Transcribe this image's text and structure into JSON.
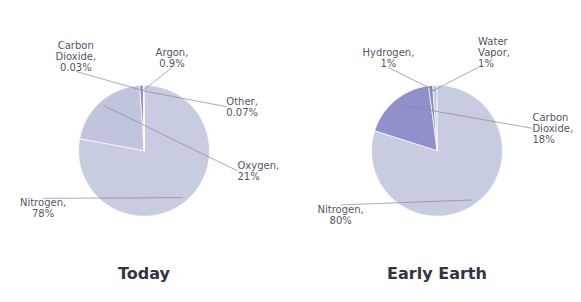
{
  "chart_data": [
    {
      "type": "pie",
      "title": "Today",
      "categories": [
        "Nitrogen,",
        "Oxygen,",
        "Argon,",
        "Other,",
        "Carbon\nDioxide,"
      ],
      "values": [
        78,
        21,
        0.9,
        0.07,
        0.03
      ],
      "value_labels": [
        "78%",
        "21%",
        "0.9%",
        "0.07%",
        "0.03%"
      ],
      "data_labels": true,
      "colors": [
        "#c8cce0",
        "#c0c4dc",
        "#9090cc",
        "#b0b4d0",
        "#c8cce0"
      ]
    },
    {
      "type": "pie",
      "title": "Early Earth",
      "categories": [
        "Nitrogen,",
        "Carbon\nDioxide,",
        "Water\nVapor,",
        "Hydrogen,"
      ],
      "values": [
        80,
        18,
        1,
        1
      ],
      "value_labels": [
        "80%",
        "18%",
        "1%",
        "1%"
      ],
      "data_labels": true,
      "colors": [
        "#c8cce0",
        "#9090cc",
        "#8888bb",
        "#c8cce0"
      ]
    }
  ]
}
